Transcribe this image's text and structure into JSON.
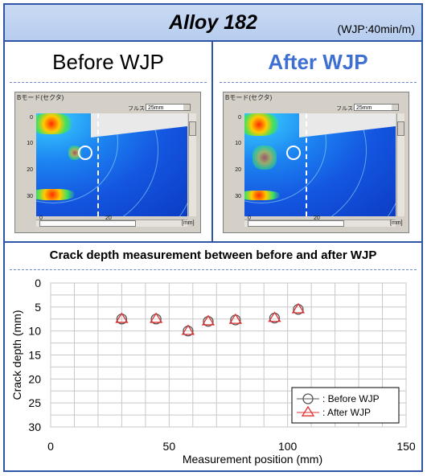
{
  "header": {
    "title": "Alloy 182",
    "subtitle": "(WJP:40min/m)"
  },
  "panels": [
    {
      "label": "Before WJP",
      "window": {
        "title": "Bモード(セクタ)",
        "combo_label": "フルスケール",
        "combo_value": "25mm",
        "yticks": [
          "0",
          "10",
          "20",
          "30"
        ],
        "xticks": [
          "0",
          "20"
        ],
        "unit": "[mm]"
      }
    },
    {
      "label": "After WJP",
      "window": {
        "title": "Bモード(セクタ)",
        "combo_label": "フルスケール",
        "combo_value": "25mm",
        "yticks": [
          "0",
          "10",
          "20",
          "30"
        ],
        "xticks": [
          "0",
          "20"
        ],
        "unit": "[mm]"
      }
    }
  ],
  "colors": {
    "frame": "#2e55a8",
    "header_bg": "#c2d5f2",
    "after_label": "#3f6fd1",
    "before_marker": "#555555",
    "after_marker": "#e03030"
  },
  "chart_data": {
    "type": "scatter",
    "title": "Crack depth measurement between before and after WJP",
    "xlabel": "Measurement position (mm)",
    "ylabel": "Crack depth (mm)",
    "xlim": [
      0,
      150
    ],
    "ylim": [
      0,
      30
    ],
    "y_inverted": true,
    "xticks": [
      0,
      50,
      100,
      150
    ],
    "yticks": [
      0,
      5,
      10,
      15,
      20,
      25,
      30
    ],
    "grid": true,
    "legend_position": "bottom-right",
    "series": [
      {
        "name": ": Before WJP",
        "marker": "circle",
        "color": "#555555",
        "x": [
          30,
          44.5,
          58,
          66.5,
          78,
          94.5,
          104.5
        ],
        "y": [
          7.5,
          7.5,
          10.0,
          8.0,
          7.7,
          7.3,
          5.5
        ]
      },
      {
        "name": ": After WJP",
        "marker": "triangle",
        "color": "#e03030",
        "x": [
          30,
          44.5,
          58,
          66.5,
          78,
          94.5,
          104.5
        ],
        "y": [
          7.5,
          7.5,
          10.0,
          8.0,
          7.7,
          7.3,
          5.5
        ]
      }
    ]
  }
}
